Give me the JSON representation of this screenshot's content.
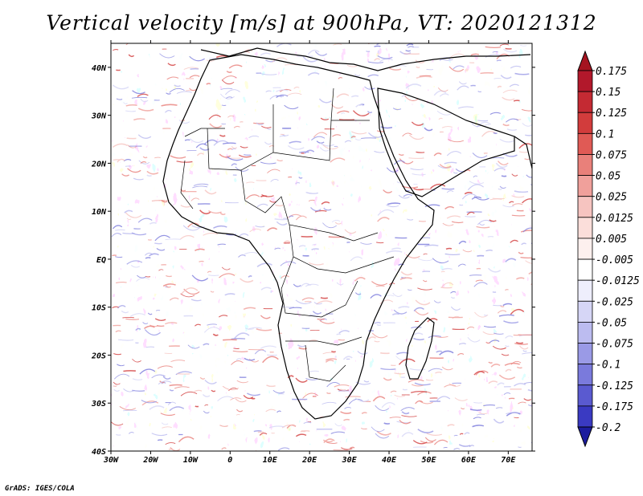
{
  "chart_data": {
    "type": "heatmap",
    "title": "Vertical velocity [m/s] at 900hPa, VT: 2020121312",
    "variable": "Vertical velocity",
    "units": "m/s",
    "level": "900hPa",
    "valid_time": "2020121312",
    "xlabel": "",
    "ylabel": "",
    "xlim": [
      -30,
      76
    ],
    "ylim": [
      -40,
      45
    ],
    "x_ticks": [
      {
        "value": -30,
        "label": "30W"
      },
      {
        "value": -20,
        "label": "20W"
      },
      {
        "value": -10,
        "label": "10W"
      },
      {
        "value": 0,
        "label": "0"
      },
      {
        "value": 10,
        "label": "10E"
      },
      {
        "value": 20,
        "label": "20E"
      },
      {
        "value": 30,
        "label": "30E"
      },
      {
        "value": 40,
        "label": "40E"
      },
      {
        "value": 50,
        "label": "50E"
      },
      {
        "value": 60,
        "label": "60E"
      },
      {
        "value": 70,
        "label": "70E"
      }
    ],
    "y_ticks": [
      {
        "value": -40,
        "label": "40S"
      },
      {
        "value": -30,
        "label": "30S"
      },
      {
        "value": -20,
        "label": "20S"
      },
      {
        "value": -10,
        "label": "10S"
      },
      {
        "value": 0,
        "label": "EQ"
      },
      {
        "value": 10,
        "label": "10N"
      },
      {
        "value": 20,
        "label": "20N"
      },
      {
        "value": 30,
        "label": "30N"
      },
      {
        "value": 40,
        "label": "40N"
      }
    ],
    "colorbar": {
      "levels": [
        {
          "label": "0.175",
          "color": "#b2182b"
        },
        {
          "label": "0.15",
          "color": "#c42a33"
        },
        {
          "label": "0.125",
          "color": "#d23c3c"
        },
        {
          "label": "0.1",
          "color": "#e05a55"
        },
        {
          "label": "0.075",
          "color": "#e9807a"
        },
        {
          "label": "0.05",
          "color": "#f0a09b"
        },
        {
          "label": "0.025",
          "color": "#f6c4c0"
        },
        {
          "label": "0.0125",
          "color": "#fbdeda"
        },
        {
          "label": "0.005",
          "color": "#fdf0ee"
        },
        {
          "label": "-0.005",
          "color": "#ffffff"
        },
        {
          "label": "-0.0125",
          "color": "#eeeefc"
        },
        {
          "label": "-0.025",
          "color": "#d6d6f6"
        },
        {
          "label": "-0.05",
          "color": "#bcbcf0"
        },
        {
          "label": "-0.075",
          "color": "#9a9ae6"
        },
        {
          "label": "-0.1",
          "color": "#7a7adc"
        },
        {
          "label": "-0.125",
          "color": "#5a5ad0"
        },
        {
          "label": "-0.175",
          "color": "#3a3ac2"
        },
        {
          "label": "-0.2",
          "color": "#2626b0"
        }
      ],
      "top_extension_color": "#a51420",
      "bottom_extension_color": "#1c1c9e"
    },
    "field_description": "Fine-scale red (ascent) and blue (descent) contour patterns over Africa and surrounding oceans"
  },
  "footer": {
    "credit": "GrADS: IGES/COLA"
  }
}
